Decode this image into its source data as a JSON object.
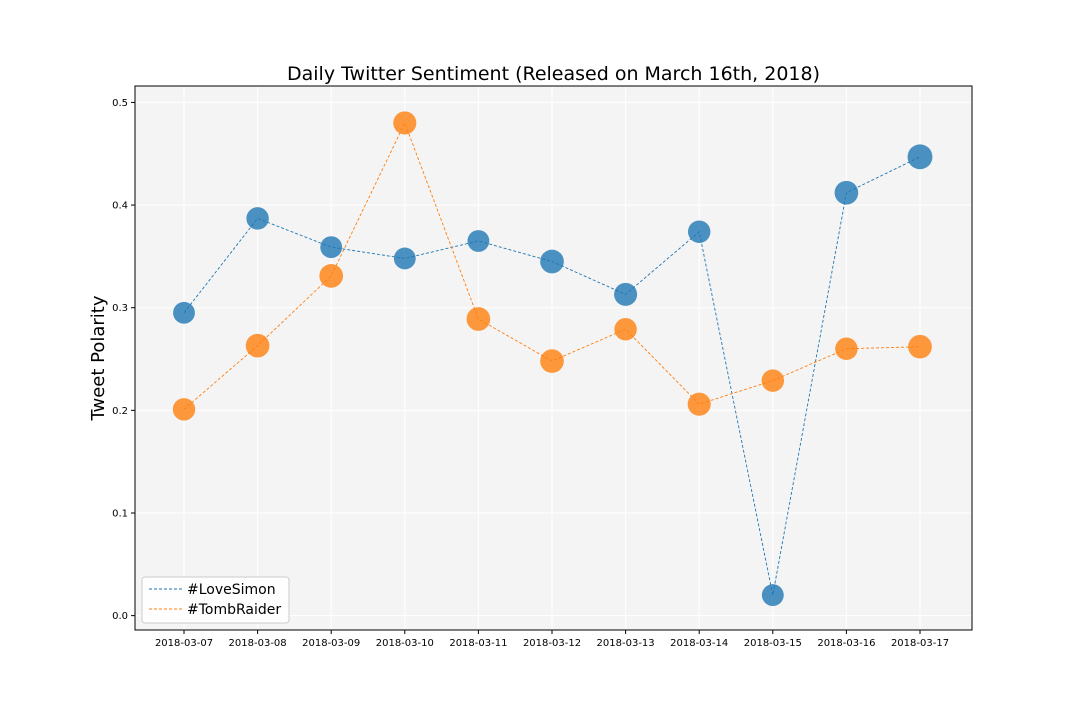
{
  "chart_data": {
    "type": "line",
    "title": "Daily Twitter Sentiment (Released on March 16th, 2018)",
    "xlabel": "",
    "ylabel": "Tweet Polarity",
    "categories": [
      "2018-03-07",
      "2018-03-08",
      "2018-03-09",
      "2018-03-10",
      "2018-03-11",
      "2018-03-12",
      "2018-03-13",
      "2018-03-14",
      "2018-03-15",
      "2018-03-16",
      "2018-03-17"
    ],
    "ylim": [
      -0.014,
      0.516
    ],
    "yticks": [
      0.0,
      0.1,
      0.2,
      0.3,
      0.4,
      0.5
    ],
    "ytick_labels": [
      "0.0",
      "0.1",
      "0.2",
      "0.3",
      "0.4",
      "0.5"
    ],
    "grid": true,
    "legend_position": "lower-left",
    "background_color": "#f4f4f4",
    "line_style": "dashed",
    "marker_size_varies": true,
    "series": [
      {
        "name": "#LoveSimon",
        "color": "#1f77b4",
        "values": [
          0.295,
          0.387,
          0.359,
          0.348,
          0.365,
          0.345,
          0.313,
          0.374,
          0.02,
          0.412,
          0.447
        ],
        "marker_weights": [
          0.85,
          0.9,
          0.85,
          0.85,
          0.85,
          1.0,
          0.95,
          0.9,
          0.85,
          1.0,
          1.1
        ]
      },
      {
        "name": "#TombRaider",
        "color": "#ff7f0e",
        "values": [
          0.201,
          0.263,
          0.331,
          0.48,
          0.289,
          0.248,
          0.279,
          0.206,
          0.229,
          0.26,
          0.262
        ],
        "marker_weights": [
          0.9,
          1.0,
          1.0,
          0.95,
          1.0,
          1.0,
          0.9,
          0.95,
          0.9,
          0.9,
          1.0
        ]
      }
    ]
  }
}
